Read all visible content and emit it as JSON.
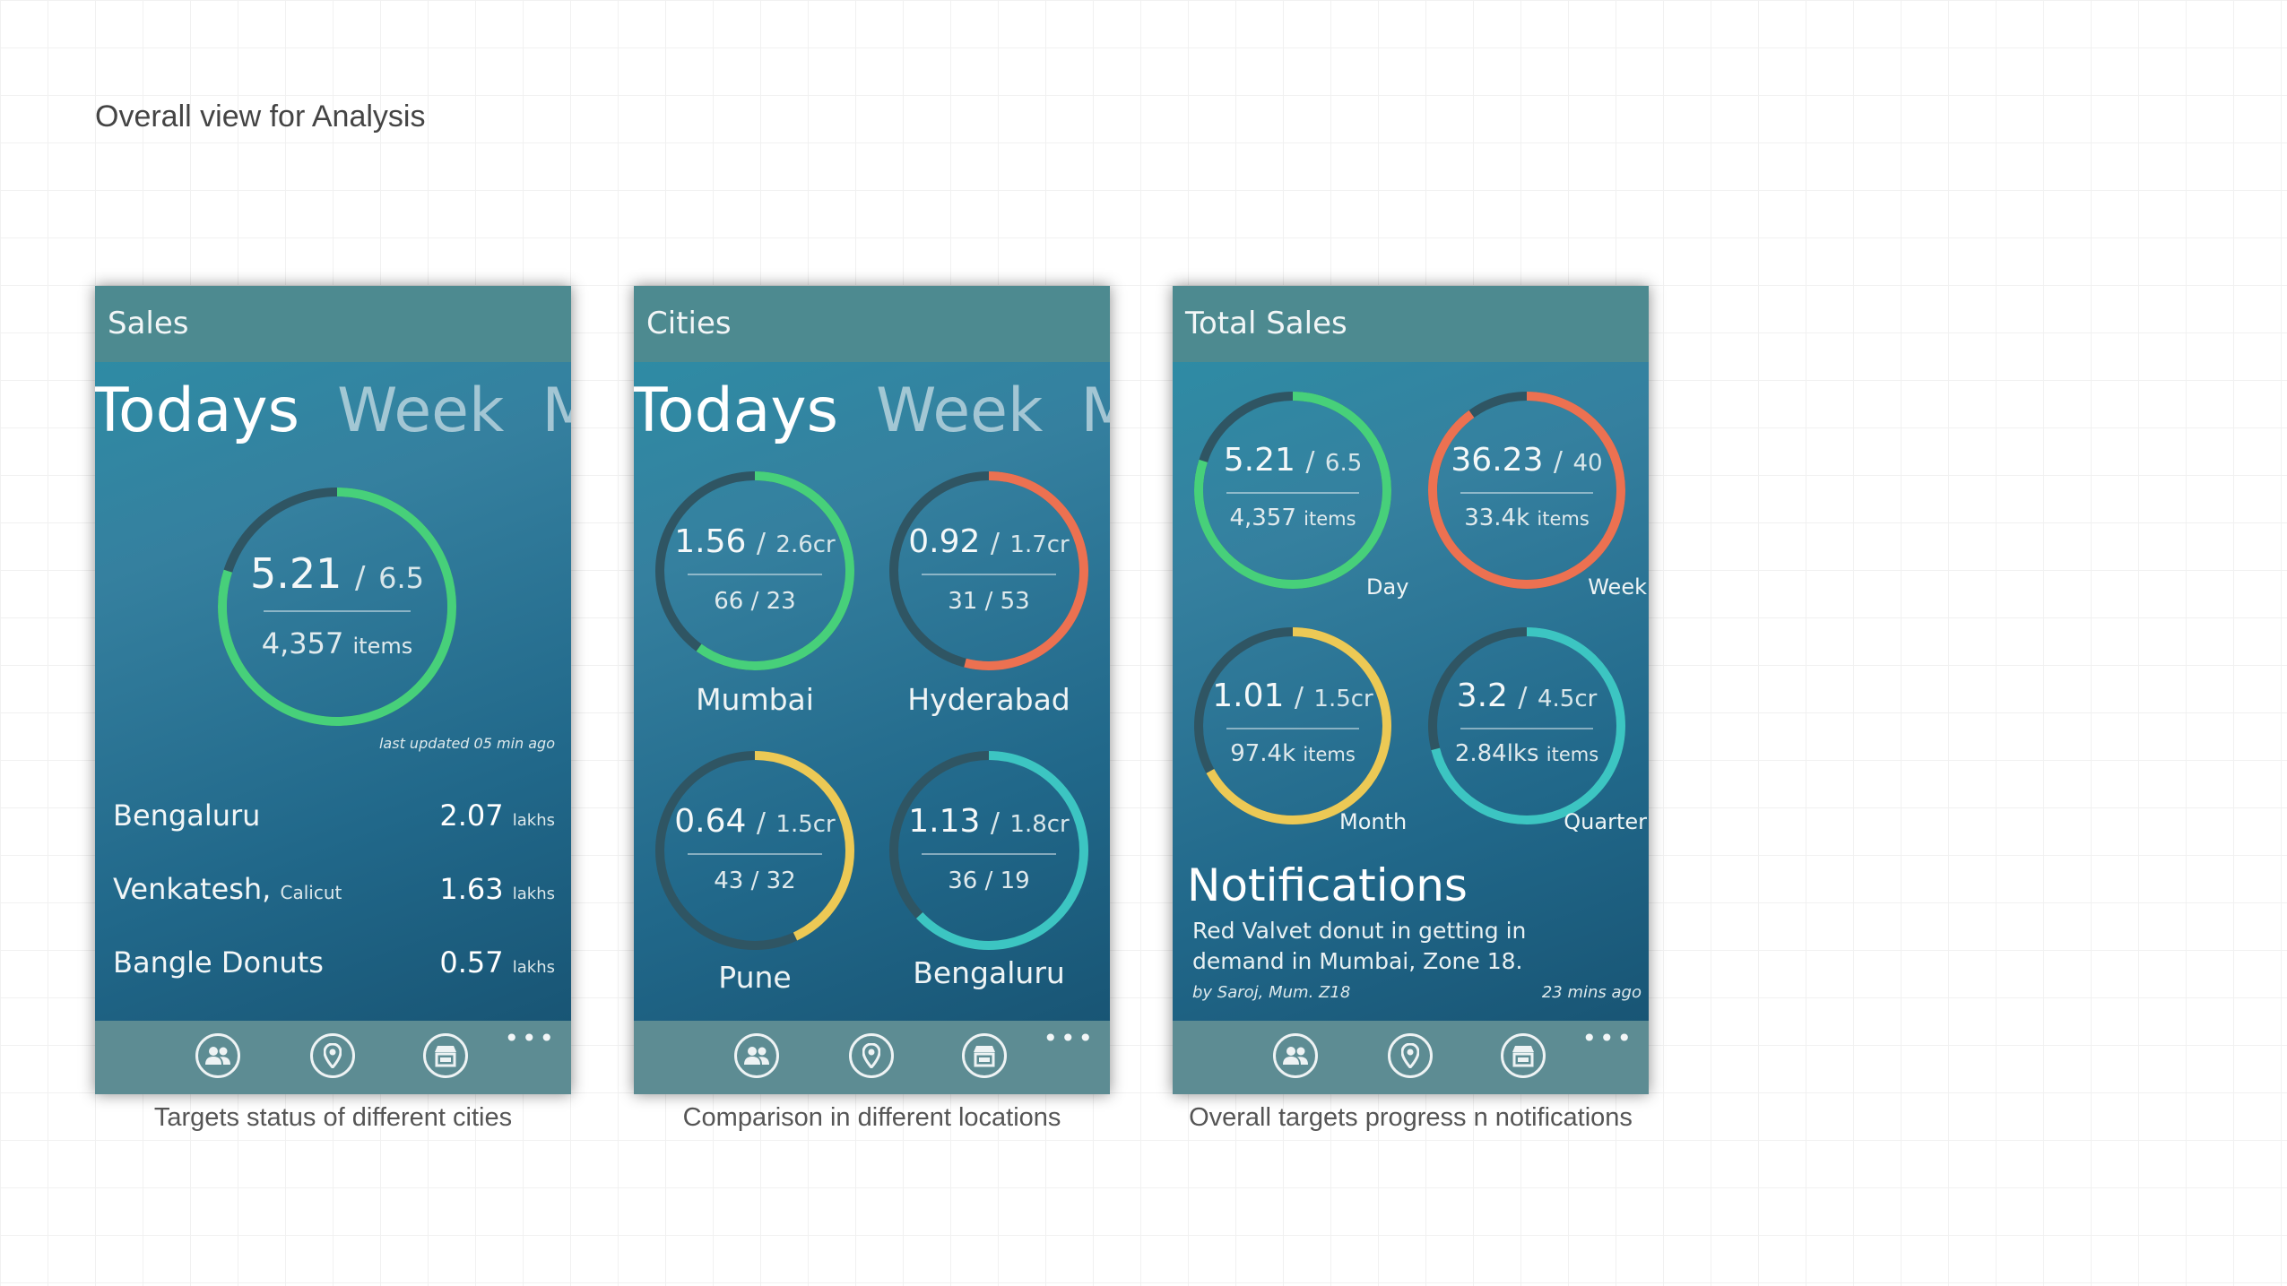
{
  "page_title": "Overall view for Analysis",
  "colors": {
    "track": "#2f5563",
    "green": "#47d07a",
    "orange": "#ec7151",
    "yellow": "#ecc955",
    "teal": "#3cc5c2"
  },
  "pivot": [
    "Todays",
    "Week",
    "Mo"
  ],
  "nav_icons": [
    "people-icon",
    "location-pin-icon",
    "store-icon",
    "more-icon"
  ],
  "more_label": "•••",
  "screen1": {
    "title": "Sales",
    "ring": {
      "value": "5.21",
      "sep": "/",
      "target": "6.5",
      "items": "4,357",
      "items_unit": "items",
      "progress": 0.8,
      "color": "green"
    },
    "last_updated": "last updated 05 min ago",
    "rows": [
      {
        "name": "Bengaluru",
        "sub": "",
        "value": "2.07",
        "unit": "lakhs"
      },
      {
        "name": "Venkatesh,",
        "sub": "Calicut",
        "value": "1.63",
        "unit": "lakhs"
      },
      {
        "name": "Bangle Donuts",
        "sub": "",
        "value": "0.57",
        "unit": "lakhs"
      }
    ],
    "caption": "Targets status of different cities"
  },
  "screen2": {
    "title": "Cities",
    "rings": [
      {
        "label": "Mumbai",
        "value": "1.56",
        "sep": "/",
        "target": "2.6cr",
        "bottom": "66 / 23",
        "progress": 0.6,
        "color": "green"
      },
      {
        "label": "Hyderabad",
        "value": "0.92",
        "sep": "/",
        "target": "1.7cr",
        "bottom": "31 / 53",
        "progress": 0.54,
        "color": "orange"
      },
      {
        "label": "Pune",
        "value": "0.64",
        "sep": "/",
        "target": "1.5cr",
        "bottom": "43 / 32",
        "progress": 0.43,
        "color": "yellow"
      },
      {
        "label": "Bengaluru",
        "value": "1.13",
        "sep": "/",
        "target": "1.8cr",
        "bottom": "36  / 19",
        "progress": 0.63,
        "color": "teal"
      }
    ],
    "caption": "Comparison in different locations"
  },
  "screen3": {
    "title": "Total Sales",
    "rings": [
      {
        "label": "Day",
        "value": "5.21",
        "sep": "/",
        "target": "6.5",
        "items": "4,357",
        "items_unit": "items",
        "progress": 0.8,
        "color": "green"
      },
      {
        "label": "Week",
        "value": "36.23",
        "sep": "/",
        "target": "40",
        "items": "33.4k",
        "items_unit": "items",
        "progress": 0.9,
        "color": "orange"
      },
      {
        "label": "Month",
        "value": "1.01",
        "sep": "/",
        "target": "1.5cr",
        "items": "97.4k",
        "items_unit": "items",
        "progress": 0.67,
        "color": "yellow"
      },
      {
        "label": "Quarter",
        "value": "3.2",
        "sep": "/",
        "target": "4.5cr",
        "items": "2.84lks",
        "items_unit": "items",
        "progress": 0.71,
        "color": "teal"
      }
    ],
    "notifications": {
      "title": "Notifications",
      "body": "Red Valvet donut in getting in demand in Mumbai, Zone 18.",
      "by": "by Saroj, Mum. Z18",
      "time": "23 mins ago"
    },
    "caption": "Overall targets progress n notifications"
  }
}
